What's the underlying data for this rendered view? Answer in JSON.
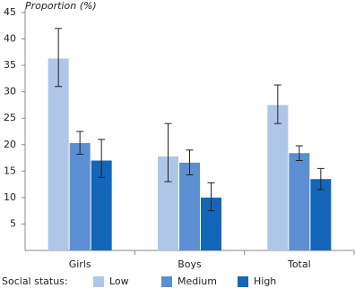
{
  "chart_data": {
    "type": "bar",
    "y_label": "Proportion (%)",
    "categories": [
      "Girls",
      "Boys",
      "Total"
    ],
    "series": [
      {
        "name": "Low",
        "color": "#aec7e8",
        "values": [
          36.3,
          17.8,
          27.5
        ],
        "lower": [
          31,
          13,
          24
        ],
        "upper": [
          42,
          24,
          31.3
        ]
      },
      {
        "name": "Medium",
        "color": "#5b8fd2",
        "values": [
          20.3,
          16.6,
          18.4
        ],
        "lower": [
          18.2,
          14.3,
          17
        ],
        "upper": [
          22.5,
          19,
          19.8
        ]
      },
      {
        "name": "High",
        "color": "#1466b9",
        "values": [
          17,
          10,
          13.5
        ],
        "lower": [
          13.8,
          7.5,
          11.5
        ],
        "upper": [
          21,
          12.8,
          15.5
        ]
      }
    ],
    "legend_title": "Social status:",
    "ylim": [
      0,
      45
    ],
    "yticks": [
      5,
      10,
      15,
      20,
      25,
      30,
      35,
      40,
      45
    ]
  }
}
